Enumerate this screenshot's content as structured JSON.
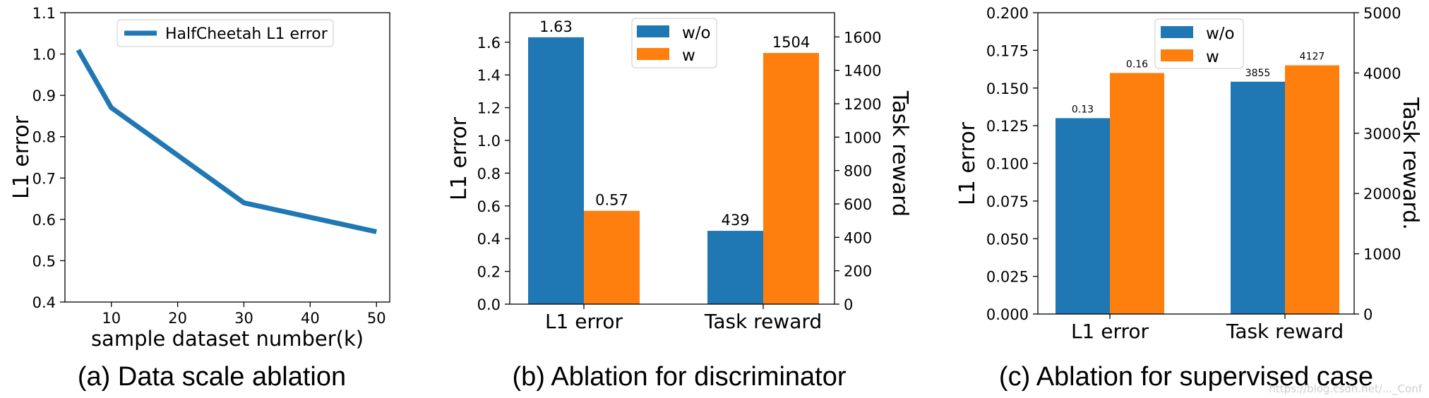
{
  "colors": {
    "wo": "#1f77b4",
    "w": "#ff7f0e",
    "axis": "#000000",
    "legend_border": "#cccccc"
  },
  "captions": {
    "a": "(a) Data scale ablation",
    "b": "(b) Ablation for discriminator",
    "c": "(c) Ablation for supervised case"
  },
  "watermark": "https://blog.csdn.net/..._Conf",
  "chart_data": [
    {
      "id": "a",
      "type": "line",
      "title": "",
      "xlabel": "sample dataset number(k)",
      "ylabel": "L1 error",
      "x": [
        5,
        10,
        30,
        50
      ],
      "series": [
        {
          "name": "HalfCheetah L1 error",
          "values": [
            1.01,
            0.87,
            0.64,
            0.57
          ]
        }
      ],
      "xlim": [
        3,
        52
      ],
      "ylim": [
        0.4,
        1.1
      ],
      "xticks": [
        10,
        20,
        30,
        40,
        50
      ],
      "xtick_labels": [
        "10",
        "20",
        "30",
        "40",
        "50"
      ],
      "yticks": [
        0.4,
        0.5,
        0.6,
        0.7,
        0.8,
        0.9,
        1.0,
        1.1
      ],
      "ytick_labels": [
        "0.4",
        "0.5",
        "0.6",
        "0.7",
        "0.8",
        "0.9",
        "1.0",
        "1.1"
      ],
      "legend": "top-center",
      "grid": false
    },
    {
      "id": "b",
      "type": "bar",
      "title": "",
      "categories": [
        "L1 error",
        "Task reward"
      ],
      "ylabel": "L1 error",
      "y2label": "Task reward",
      "series": [
        {
          "name": "w/o",
          "values": [
            1.63,
            439
          ],
          "labels": [
            "1.63",
            "439"
          ],
          "axes": [
            "left",
            "right"
          ]
        },
        {
          "name": "w",
          "values": [
            0.57,
            1504
          ],
          "labels": [
            "0.57",
            "1504"
          ],
          "axes": [
            "left",
            "right"
          ]
        }
      ],
      "ylim": [
        0,
        1.78
      ],
      "y2lim": [
        0,
        1745
      ],
      "yticks": [
        0.0,
        0.2,
        0.4,
        0.6,
        0.8,
        1.0,
        1.2,
        1.4,
        1.6
      ],
      "ytick_labels": [
        "0.0",
        "0.2",
        "0.4",
        "0.6",
        "0.8",
        "1.0",
        "1.2",
        "1.4",
        "1.6"
      ],
      "y2ticks": [
        0,
        200,
        400,
        600,
        800,
        1000,
        1200,
        1400,
        1600
      ],
      "y2tick_labels": [
        "0",
        "200",
        "400",
        "600",
        "800",
        "1000",
        "1200",
        "1400",
        "1600"
      ],
      "legend": "top-center",
      "grid": false
    },
    {
      "id": "c",
      "type": "bar",
      "title": "",
      "categories": [
        "L1 error",
        "Task reward"
      ],
      "ylabel": "L1 error",
      "y2label": "Task reward.",
      "series": [
        {
          "name": "w/o",
          "values": [
            0.13,
            3855
          ],
          "labels": [
            "0.13",
            "3855"
          ],
          "axes": [
            "left",
            "right"
          ]
        },
        {
          "name": "w",
          "values": [
            0.16,
            4127
          ],
          "labels": [
            "0.16",
            "4127"
          ],
          "axes": [
            "left",
            "right"
          ]
        }
      ],
      "ylim": [
        0,
        0.2
      ],
      "y2lim": [
        0,
        5000
      ],
      "yticks": [
        0.0,
        0.025,
        0.05,
        0.075,
        0.1,
        0.125,
        0.15,
        0.175,
        0.2
      ],
      "ytick_labels": [
        "0.000",
        "0.025",
        "0.050",
        "0.075",
        "0.100",
        "0.125",
        "0.150",
        "0.175",
        "0.200"
      ],
      "y2ticks": [
        0,
        1000,
        2000,
        3000,
        4000,
        5000
      ],
      "y2tick_labels": [
        "0",
        "1000",
        "2000",
        "3000",
        "4000",
        "5000"
      ],
      "legend": "top-center",
      "grid": false
    }
  ]
}
